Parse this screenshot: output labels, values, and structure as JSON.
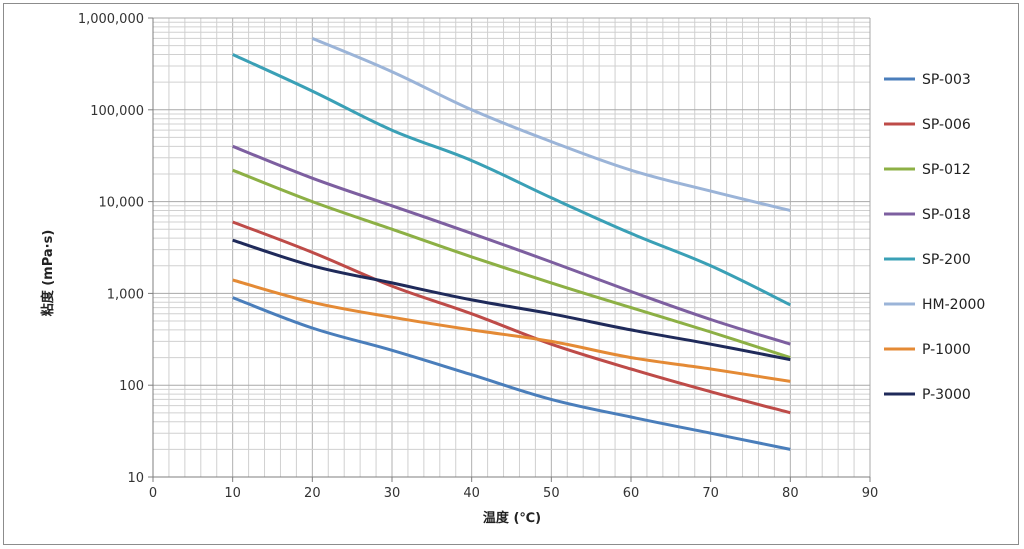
{
  "chart_data": {
    "type": "line",
    "title": "",
    "xlabel": "温度 (℃)",
    "ylabel": "粘度 (mPa·s)",
    "xlim": [
      0,
      90
    ],
    "ylim": [
      10,
      1000000
    ],
    "yscale": "log",
    "grid": true,
    "legend_position": "right",
    "x_ticks": [
      "0",
      "10",
      "20",
      "30",
      "40",
      "50",
      "60",
      "70",
      "80",
      "90"
    ],
    "y_ticks": [
      "10",
      "100",
      "1,000",
      "10,000",
      "100,000",
      "1,000,000"
    ],
    "series": [
      {
        "name": "SP-003",
        "color": "#4a7ebb",
        "x": [
          10,
          20,
          30,
          40,
          50,
          60,
          70,
          80
        ],
        "values": [
          900,
          420,
          240,
          130,
          70,
          45,
          30,
          20
        ]
      },
      {
        "name": "SP-006",
        "color": "#be4b48",
        "x": [
          10,
          20,
          30,
          40,
          50,
          60,
          70,
          80
        ],
        "values": [
          6000,
          2800,
          1200,
          600,
          280,
          150,
          85,
          50
        ]
      },
      {
        "name": "SP-012",
        "color": "#8db045",
        "x": [
          10,
          20,
          30,
          40,
          50,
          60,
          70,
          80
        ],
        "values": [
          22000,
          10000,
          5000,
          2500,
          1300,
          700,
          380,
          200
        ]
      },
      {
        "name": "SP-018",
        "color": "#7d5fa0",
        "x": [
          10,
          20,
          30,
          40,
          50,
          60,
          70,
          80
        ],
        "values": [
          40000,
          18000,
          9000,
          4500,
          2200,
          1050,
          520,
          280
        ]
      },
      {
        "name": "SP-200",
        "color": "#3aa0b6",
        "x": [
          10,
          20,
          30,
          40,
          50,
          60,
          70,
          80
        ],
        "values": [
          400000,
          160000,
          60000,
          28000,
          11000,
          4500,
          2000,
          750
        ]
      },
      {
        "name": "HM-2000",
        "color": "#9bb4d8",
        "x": [
          20,
          30,
          40,
          50,
          60,
          70,
          80
        ],
        "values": [
          600000,
          260000,
          100000,
          45000,
          22000,
          13000,
          8000
        ]
      },
      {
        "name": "P-1000",
        "color": "#e48a35",
        "x": [
          10,
          20,
          30,
          40,
          50,
          60,
          70,
          80
        ],
        "values": [
          1400,
          800,
          550,
          400,
          300,
          200,
          150,
          110
        ]
      },
      {
        "name": "P-3000",
        "color": "#1f2a5a",
        "x": [
          10,
          20,
          30,
          40,
          50,
          60,
          70,
          80
        ],
        "values": [
          3800,
          2000,
          1300,
          850,
          600,
          400,
          280,
          190
        ]
      }
    ]
  }
}
